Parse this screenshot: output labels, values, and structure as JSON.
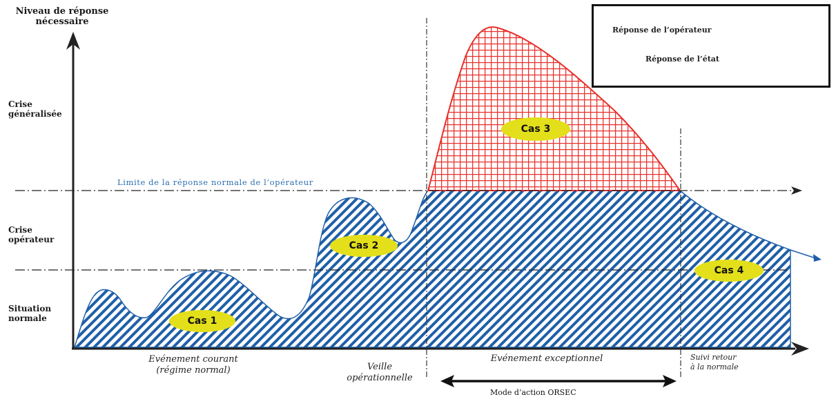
{
  "title": "Niveau de réponse nécessaire",
  "title_line1": "Niveau de réponse",
  "title_line2": "nécessaire",
  "y_levels": {
    "crise_generalisee": [
      "Crise",
      "généralisée"
    ],
    "crise_operateur": [
      "Crise",
      "opérateur"
    ],
    "situation_normale": [
      "Situation",
      "normale"
    ]
  },
  "limit_label": "Limite de la réponse normale de l’opérateur",
  "phases": {
    "courant": [
      "Evénement courant",
      "(régime normal)"
    ],
    "veille": [
      "Veille",
      "opérationnelle"
    ],
    "exceptionnel": "Evénement exceptionnel",
    "retour": [
      "Suivi retour",
      "à la normale"
    ]
  },
  "orsec_label": "Mode d’action ORSEC",
  "cases": [
    "Cas 1",
    "Cas 2",
    "Cas 3",
    "Cas 4"
  ],
  "legend": {
    "operateur": "Réponse de l’opérateur",
    "etat": "Réponse de l’état"
  },
  "colors": {
    "operateur": "#1f5fa8",
    "etat": "#e8302a",
    "cas_fill": "#e3df1a",
    "axis": "#222222",
    "limit_text": "#2d6fb0"
  }
}
